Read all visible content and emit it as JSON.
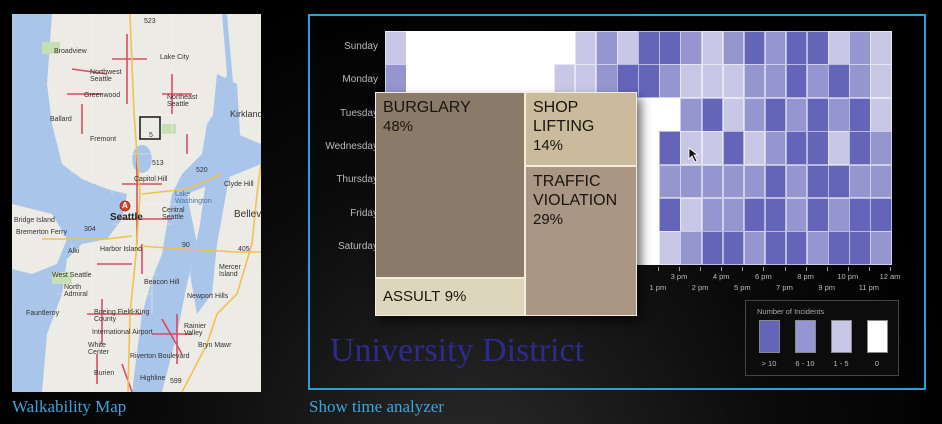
{
  "map": {
    "caption": "Walkability Map",
    "labels": {
      "broadview": "Broadview",
      "lake_city": "Lake City",
      "northwest_seattle": "Northwest\nSeattle",
      "northeast_seattle": "Northeast\nSeattle",
      "greenwood": "Greenwood",
      "ballard": "Ballard",
      "kirkland": "Kirkland",
      "fremont": "Fremont",
      "clyde_hill": "Clyde Hill",
      "capitol_hill": "Capitol Hill",
      "lake_washington": "Lake\nWashington",
      "seattle": "Seattle",
      "central_seattle": "Central\nSeattle",
      "bellevue": "Bellev",
      "bridge_island": "Bridge Island",
      "bremerton_ferry": "Bremerton Ferry",
      "harbor_island": "Harbor Island",
      "alki": "Alki",
      "mercer_island": "Mercer\nIsland",
      "west_seattle": "West Seattle",
      "beacon_hill": "Beacon Hill",
      "north_admiral": "North\nAdmiral",
      "newport_hills": "Newport Hills",
      "fauntleroy": "Fauntleroy",
      "boeing_field": "Boeing Field-King\nCounty",
      "international_airport": "International Airport",
      "rainier_valley": "Rainier\nValley",
      "white_center": "White\nCenter",
      "riverton_boulevard": "Riverton Boulevard",
      "burien": "Burien",
      "highline": "Highline",
      "bryn_mawr": "Bryn Mawr",
      "hwy_523": "523",
      "hwy_513": "513",
      "hwy_520": "520",
      "hwy_5": "5",
      "hwy_304": "304",
      "hwy_90": "90",
      "hwy_405": "405",
      "hwy_599": "599",
      "marker": "A"
    }
  },
  "analyzer": {
    "caption": "Show time analyzer",
    "district": "University District",
    "days": [
      "Sunday",
      "Monday",
      "Tuesday",
      "Wednesday",
      "Thursday",
      "Friday",
      "Saturday"
    ],
    "x_ticks_top": [
      "3 pm",
      "4 pm",
      "6 pm",
      "8 pm",
      "10 pm",
      "12 am"
    ],
    "x_ticks_bottom": [
      "1 pm",
      "2 pm",
      "5 pm",
      "7 pm",
      "9 pm",
      "11 pm"
    ],
    "treemap": {
      "burglary": {
        "name": "BURGLARY",
        "pct": "48%"
      },
      "shoplifting": {
        "name": "SHOP\nLIFTING",
        "pct": "14%"
      },
      "traffic": {
        "name": "TRAFFIC\nVIOLATION",
        "pct": "29%"
      },
      "assult": {
        "name": "ASSULT",
        "pct": "9%"
      }
    },
    "legend": {
      "title": "Number of Incidents",
      "items": [
        {
          "label": "> 10",
          "color": "#6465b8"
        },
        {
          "label": "6 - 10",
          "color": "#9595cf"
        },
        {
          "label": "1 - 5",
          "color": "#c8c8e6"
        },
        {
          "label": "0",
          "color": "#ffffff"
        }
      ]
    },
    "colors": {
      "level0": "#ffffff",
      "level1": "#c8c8e6",
      "level2": "#9595cf",
      "level3": "#6465b8",
      "frame": "#2aa0d8",
      "burglary": "#8a7a69",
      "shoplifting": "#c9bb9c",
      "traffic": "#a99684",
      "assult": "#ddd6bd"
    },
    "chart_data": {
      "type": "heatmap",
      "rows": [
        "Sunday",
        "Monday",
        "Tuesday",
        "Wednesday",
        "Thursday",
        "Friday",
        "Saturday"
      ],
      "columns": 24,
      "legend_levels": [
        "0",
        "1 - 5",
        "6 - 10",
        "> 10"
      ],
      "values": [
        [
          1,
          0,
          0,
          0,
          0,
          0,
          0,
          0,
          0,
          1,
          2,
          1,
          3,
          3,
          2,
          1,
          2,
          3,
          2,
          3,
          3,
          1,
          2,
          1
        ],
        [
          2,
          0,
          0,
          0,
          0,
          0,
          0,
          0,
          1,
          1,
          2,
          3,
          3,
          2,
          1,
          1,
          1,
          2,
          2,
          3,
          2,
          3,
          2,
          1
        ],
        [
          2,
          0,
          0,
          0,
          0,
          0,
          0,
          0,
          0,
          0,
          0,
          0,
          0,
          0,
          2,
          3,
          1,
          2,
          3,
          2,
          3,
          2,
          3,
          1
        ],
        [
          2,
          0,
          0,
          0,
          0,
          0,
          0,
          0,
          0,
          0,
          0,
          0,
          0,
          3,
          1,
          1,
          3,
          1,
          2,
          3,
          3,
          1,
          3,
          2
        ],
        [
          2,
          0,
          0,
          0,
          0,
          0,
          0,
          0,
          0,
          0,
          0,
          0,
          0,
          2,
          2,
          2,
          2,
          2,
          3,
          2,
          3,
          3,
          2,
          2
        ],
        [
          2,
          0,
          0,
          0,
          0,
          0,
          0,
          0,
          0,
          0,
          0,
          0,
          0,
          3,
          1,
          2,
          2,
          3,
          3,
          2,
          3,
          2,
          3,
          3
        ],
        [
          2,
          0,
          0,
          0,
          0,
          0,
          0,
          0,
          0,
          0,
          0,
          0,
          0,
          1,
          2,
          3,
          3,
          2,
          3,
          3,
          2,
          3,
          3,
          2
        ]
      ]
    }
  }
}
